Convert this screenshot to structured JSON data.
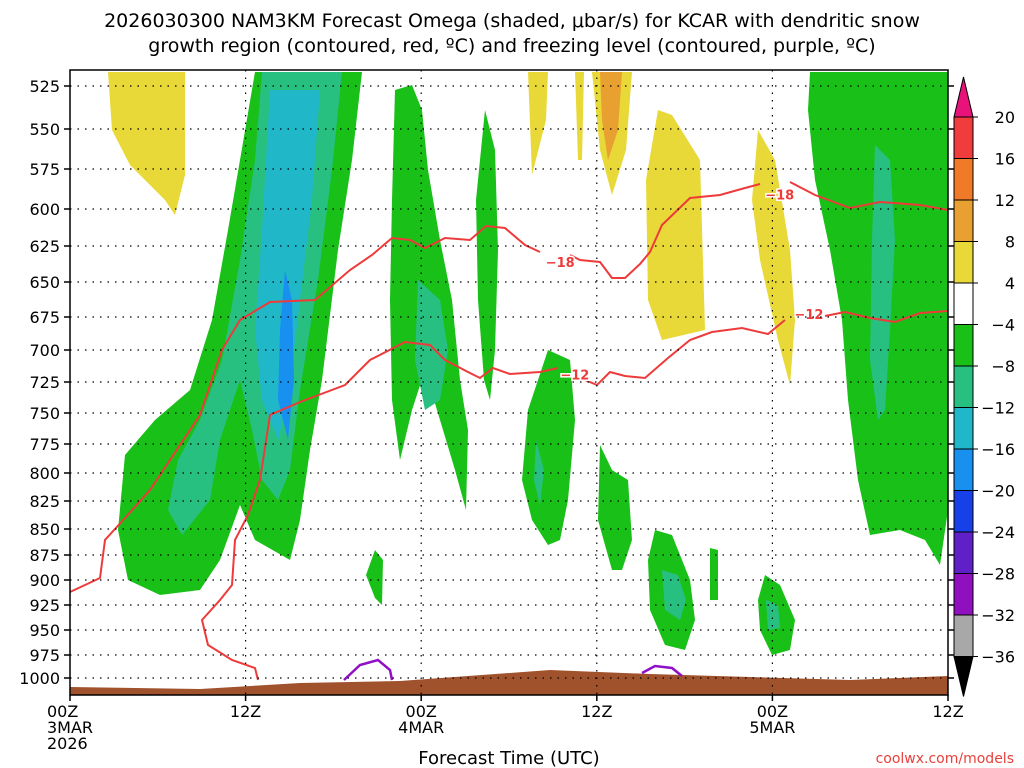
{
  "chart_data": {
    "type": "time-height-contour",
    "title": [
      "2026030300 NAM3KM Forecast Omega (shaded, μbar/s) for KCAR with dendritic snow",
      "growth region (contoured, red, ºC) and freezing level (contoured, purple, ºC)"
    ],
    "xlabel": "Forecast Time (UTC)",
    "x_range_hours": [
      0,
      60
    ],
    "x_ticks": [
      {
        "hour": 0,
        "labels": [
          "00Z",
          "3MAR",
          "2026"
        ]
      },
      {
        "hour": 12,
        "labels": [
          "12Z"
        ]
      },
      {
        "hour": 24,
        "labels": [
          "00Z",
          "4MAR"
        ]
      },
      {
        "hour": 36,
        "labels": [
          "12Z"
        ]
      },
      {
        "hour": 48,
        "labels": [
          "00Z",
          "5MAR"
        ]
      },
      {
        "hour": 60,
        "labels": [
          "12Z"
        ]
      }
    ],
    "y_axis": "pressure (hPa)",
    "y_ticks": [
      525,
      550,
      575,
      600,
      625,
      650,
      675,
      700,
      725,
      750,
      775,
      800,
      825,
      850,
      875,
      900,
      925,
      950,
      975,
      1000
    ],
    "colorbar": {
      "labels": [
        "20",
        "16",
        "12",
        "8",
        "4",
        "−4",
        "−8",
        "−12",
        "−16",
        "−20",
        "−24",
        "−28",
        "−32",
        "−36"
      ],
      "colors": [
        "#e8137a",
        "#f03c3c",
        "#f07a28",
        "#e8a030",
        "#e8d838",
        "#ffffff",
        "#18c018",
        "#28c080",
        "#20b8c8",
        "#1890f0",
        "#1840e8",
        "#6020c8",
        "#9010c0",
        "#a8a8a8",
        "#000000"
      ]
    },
    "contour_labels": [
      {
        "text": "−18",
        "hour": 33.5,
        "hPa": 636
      },
      {
        "text": "−18",
        "hour": 48.5,
        "hPa": 591
      },
      {
        "text": "−12",
        "hour": 34.5,
        "hPa": 719
      },
      {
        "text": "−12",
        "hour": 50.5,
        "hPa": 673
      }
    ],
    "colors": {
      "dgz_contour": "#ee3a3a",
      "freezing_level": "#9010c8",
      "terrain": "#a0522d",
      "grid": "#000000"
    },
    "credit": "coolwx.com/models"
  }
}
